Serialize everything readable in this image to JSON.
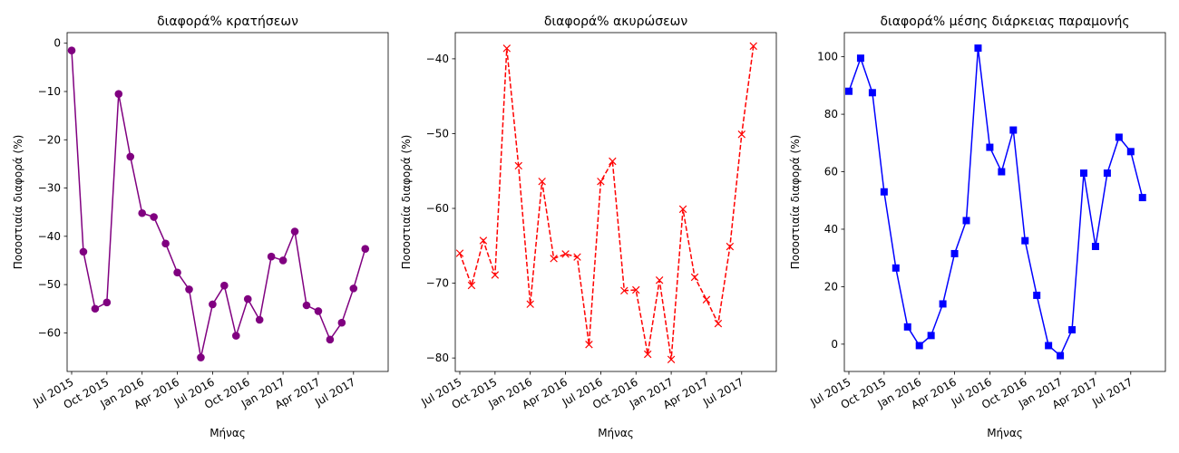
{
  "chart_data": [
    {
      "type": "line",
      "title": "διαφορά% κρατήσεων",
      "xlabel": "Μήνας",
      "ylabel": "Ποσοστιαία διαφορά (%)",
      "x": [
        "2015-07",
        "2015-08",
        "2015-09",
        "2015-10",
        "2015-11",
        "2015-12",
        "2016-01",
        "2016-02",
        "2016-03",
        "2016-04",
        "2016-05",
        "2016-06",
        "2016-07",
        "2016-08",
        "2016-09",
        "2016-10",
        "2016-11",
        "2016-12",
        "2017-01",
        "2017-02",
        "2017-03",
        "2017-04",
        "2017-05",
        "2017-06",
        "2017-07",
        "2017-08"
      ],
      "values": [
        -1.5,
        -43.2,
        -55.0,
        -53.7,
        -10.5,
        -23.5,
        -35.2,
        -36.0,
        -41.5,
        -47.5,
        -51.0,
        -65.1,
        -54.1,
        -50.2,
        -60.6,
        -53.0,
        -57.3,
        -44.2,
        -45.0,
        -39.0,
        -54.3,
        -55.5,
        -61.4,
        -57.9,
        -50.8,
        -42.6
      ],
      "ylim": [
        -68,
        2.2
      ],
      "yticks": [
        0,
        -10,
        -20,
        -30,
        -40,
        -50,
        -60
      ],
      "xticks": [
        "Jul 2015",
        "Oct 2015",
        "Jan 2016",
        "Apr 2016",
        "Jul 2016",
        "Oct 2016",
        "Jan 2017",
        "Apr 2017",
        "Jul 2017"
      ],
      "style": {
        "color": "#800080",
        "dash": "solid",
        "marker": "circle"
      }
    },
    {
      "type": "line",
      "title": "διαφορά% ακυρώσεων",
      "xlabel": "Μήνας",
      "ylabel": "Ποσοστιαία διαφορά (%)",
      "x": [
        "2015-07",
        "2015-08",
        "2015-09",
        "2015-10",
        "2015-11",
        "2015-12",
        "2016-01",
        "2016-02",
        "2016-03",
        "2016-04",
        "2016-05",
        "2016-06",
        "2016-07",
        "2016-08",
        "2016-09",
        "2016-10",
        "2016-11",
        "2016-12",
        "2017-01",
        "2017-02",
        "2017-03",
        "2017-04",
        "2017-05",
        "2017-06",
        "2017-07",
        "2017-08"
      ],
      "values": [
        -66.0,
        -70.3,
        -64.3,
        -68.9,
        -38.6,
        -54.3,
        -72.8,
        -56.4,
        -66.7,
        -66.1,
        -66.5,
        -78.2,
        -56.4,
        -53.7,
        -71.0,
        -70.9,
        -79.5,
        -69.6,
        -80.2,
        -60.1,
        -69.2,
        -72.2,
        -75.4,
        -65.1,
        -50.1,
        -38.3
      ],
      "ylim": [
        -81.8,
        -36.5
      ],
      "yticks": [
        -40,
        -50,
        -60,
        -70,
        -80
      ],
      "xticks": [
        "Jul 2015",
        "Oct 2015",
        "Jan 2016",
        "Apr 2016",
        "Jul 2016",
        "Oct 2016",
        "Jan 2017",
        "Apr 2017",
        "Jul 2017"
      ],
      "style": {
        "color": "#ff0000",
        "dash": "dashed",
        "marker": "x"
      }
    },
    {
      "type": "line",
      "title": "διαφορά% μέσης διάρκειας παραμονής",
      "xlabel": "Μήνας",
      "ylabel": "Ποσοστιαία διαφορά (%)",
      "x": [
        "2015-07",
        "2015-08",
        "2015-09",
        "2015-10",
        "2015-11",
        "2015-12",
        "2016-01",
        "2016-02",
        "2016-03",
        "2016-04",
        "2016-05",
        "2016-06",
        "2016-07",
        "2016-08",
        "2016-09",
        "2016-10",
        "2016-11",
        "2016-12",
        "2017-01",
        "2017-02",
        "2017-03",
        "2017-04",
        "2017-05",
        "2017-06",
        "2017-07",
        "2017-08"
      ],
      "values": [
        88.0,
        99.5,
        87.5,
        53.0,
        26.5,
        6.0,
        -0.5,
        3.0,
        14.0,
        31.5,
        43.0,
        103.0,
        68.5,
        60.0,
        74.5,
        36.0,
        17.0,
        -0.5,
        -4.0,
        5.0,
        59.5,
        34.0,
        59.5,
        72.0,
        67.0,
        51.0
      ],
      "ylim": [
        -9.5,
        108.4
      ],
      "yticks": [
        0,
        20,
        40,
        60,
        80,
        100
      ],
      "xticks": [
        "Jul 2015",
        "Oct 2015",
        "Jan 2016",
        "Apr 2016",
        "Jul 2016",
        "Oct 2016",
        "Jan 2017",
        "Apr 2017",
        "Jul 2017"
      ],
      "style": {
        "color": "#0000ff",
        "dash": "solid",
        "marker": "square"
      }
    }
  ]
}
